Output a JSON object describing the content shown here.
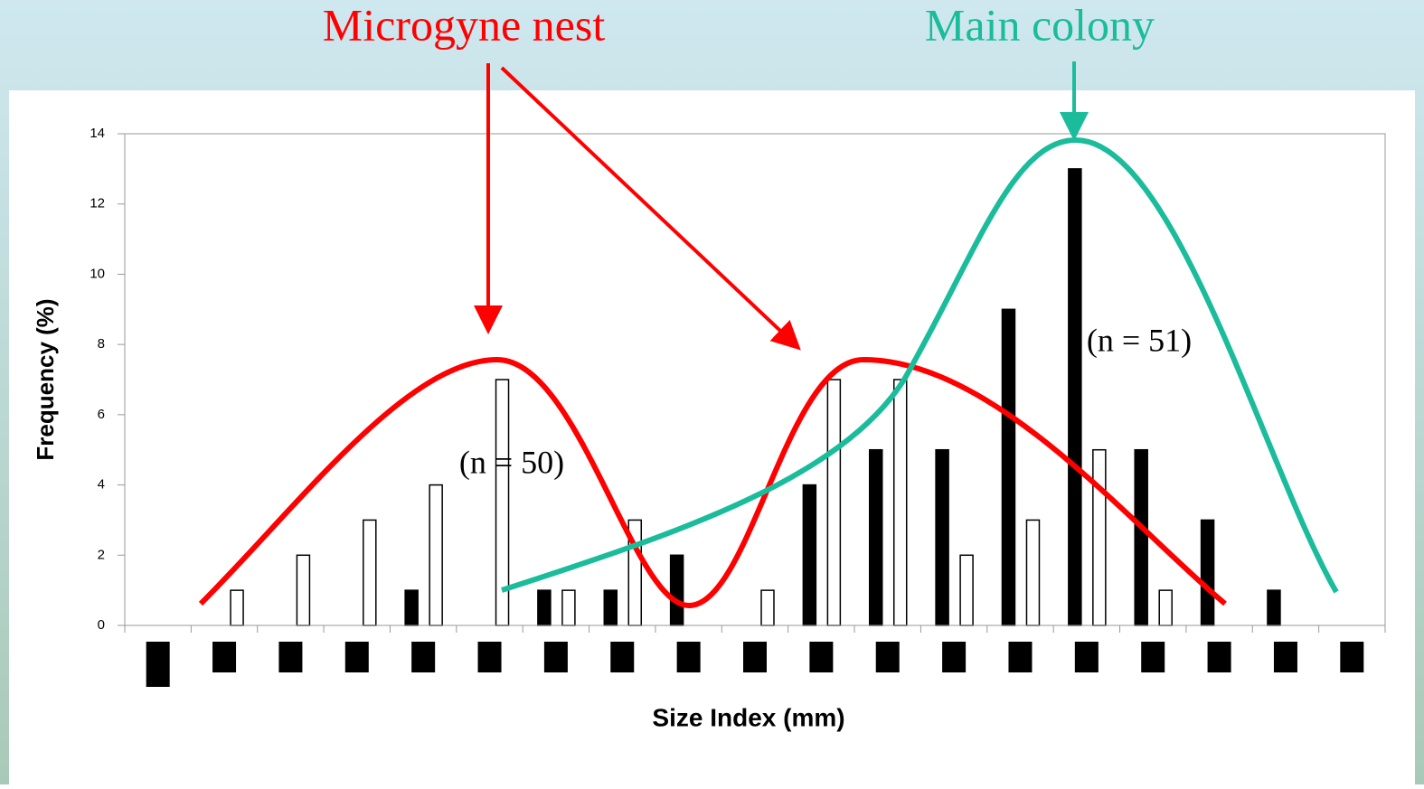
{
  "chart_data": {
    "type": "bar",
    "annotations": [
      "Microgyne nest",
      "Main colony",
      "(n = 50)",
      "(n = 51)"
    ],
    "x_label": "Size Index (mm)",
    "y_label": "Frequency (%)",
    "categories": [
      null,
      null,
      null,
      null,
      null,
      null,
      null,
      null,
      null,
      null,
      null,
      null,
      null,
      null,
      null,
      null,
      null,
      null,
      null
    ],
    "series": [
      {
        "color": "#000000",
        "values": [
          0,
          0,
          0,
          0,
          1,
          0,
          1,
          1,
          2,
          0,
          4,
          5,
          5,
          9,
          13,
          5,
          3,
          1,
          0
        ]
      },
      {
        "color": "#ffffff",
        "values": [
          0,
          1,
          2,
          3,
          4,
          7,
          1,
          3,
          0,
          1,
          7,
          7,
          2,
          3,
          5,
          1,
          0,
          0,
          0
        ]
      }
    ],
    "ylim": [
      0,
      14
    ],
    "yticks": [
      0,
      2,
      4,
      6,
      8,
      10,
      12,
      14
    ],
    "grid": false
  }
}
